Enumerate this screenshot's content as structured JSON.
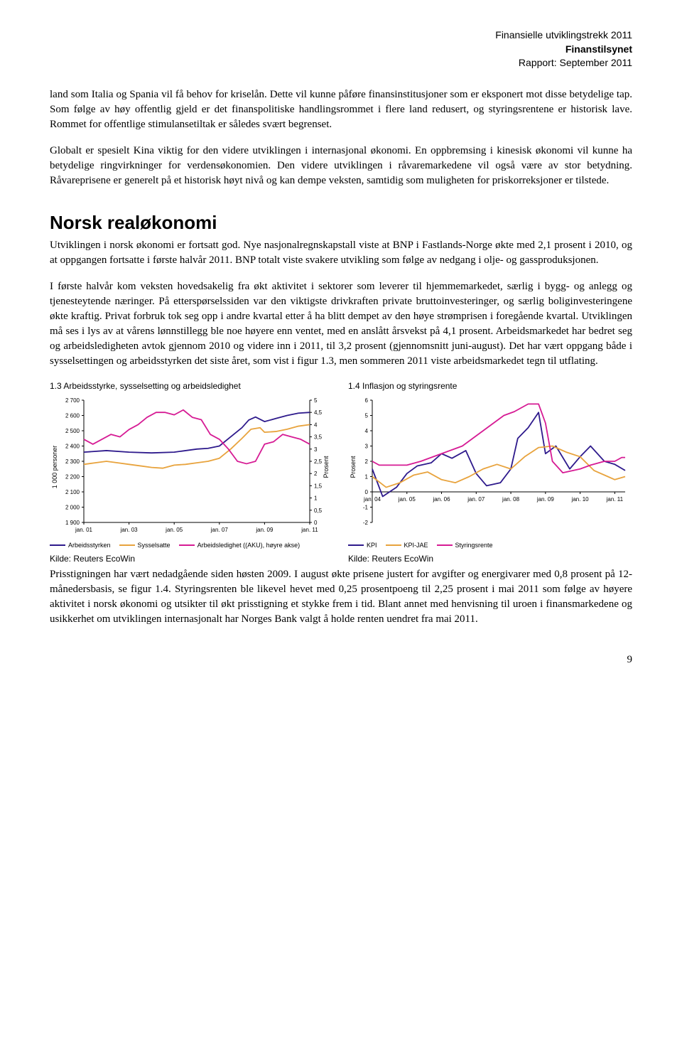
{
  "header": {
    "line1": "Finansielle utviklingstrekk 2011",
    "line2_bold": "Finanstilsynet",
    "line3": "Rapport: September 2011"
  },
  "paragraphs": {
    "p1": "land som Italia og Spania vil få behov for kriselån. Dette vil kunne påføre finansinstitusjoner som er eksponert mot disse betydelige tap. Som følge av høy offentlig gjeld er det finanspolitiske handlingsrommet i flere land redusert, og styringsrentene er historisk lave. Rommet for offentlige stimulansetiltak er således svært begrenset.",
    "p2": "Globalt er spesielt Kina viktig for den videre utviklingen i internasjonal økonomi. En oppbremsing i kinesisk økonomi vil kunne ha betydelige ringvirkninger for verdensøkonomien. Den videre utviklingen i råvaremarkedene vil også være av stor betydning. Råvareprisene er generelt på et historisk høyt nivå og kan dempe veksten, samtidig som muligheten for priskorreksjoner er tilstede.",
    "section_title": "Norsk realøkonomi",
    "p3": "Utviklingen i norsk økonomi er fortsatt god. Nye nasjonalregnskapstall viste at BNP i Fastlands-Norge økte med 2,1 prosent i 2010, og at oppgangen fortsatte i første halvår 2011. BNP totalt viste svakere utvikling som følge av nedgang i olje- og gassproduksjonen.",
    "p4": "I første halvår kom veksten hovedsakelig fra økt aktivitet i sektorer som leverer til hjemmemarkedet, særlig i bygg- og anlegg og tjenesteytende næringer. På etterspørselssiden var den viktigste drivkraften private bruttoinvesteringer, og særlig boliginvesteringene økte kraftig. Privat forbruk tok seg opp i andre kvartal etter å ha blitt dempet av den høye strømprisen i foregående kvartal. Utviklingen må ses i lys av at vårens lønnstillegg ble noe høyere enn ventet, med en anslått årsvekst på 4,1 prosent. Arbeidsmarkedet har bedret seg og arbeidsledigheten avtok gjennom 2010 og videre inn i 2011, til 3,2 prosent (gjennomsnitt juni-august). Det har vært oppgang både i sysselsettingen og arbeidsstyrken det siste året, som vist i figur 1.3, men sommeren 2011 viste arbeidsmarkedet tegn til utflating.",
    "p5": "Prisstigningen har vært nedadgående siden høsten 2009. I august økte prisene justert for avgifter og energivarer med 0,8 prosent på 12-månedersbasis, se figur 1.4. Styringsrenten ble likevel hevet med 0,25 prosentpoeng til 2,25 prosent i mai 2011 som følge av høyere aktivitet i norsk økonomi og utsikter til økt prisstigning et stykke frem i tid. Blant annet med henvisning til uroen i finansmarkedene og usikkerhet om utviklingen internasjonalt har Norges Bank valgt å holde renten uendret fra mai 2011."
  },
  "chart_left": {
    "title": "1.3 Arbeidsstyrke, sysselsetting og arbeidsledighet",
    "y_label_left": "1 000 personer",
    "y_left_min": 1900,
    "y_left_max": 2700,
    "y_left_step": 100,
    "y_right_min": 0,
    "y_right_max": 5,
    "y_right_step": 0.5,
    "x_ticks": [
      "jan. 01",
      "jan. 03",
      "jan. 05",
      "jan. 07",
      "jan. 09",
      "jan. 11"
    ],
    "series": {
      "arbeidsstyrken": {
        "label": "Arbeidsstyrken",
        "color": "#2e1a8c",
        "axis": "left",
        "points": [
          [
            0,
            2360
          ],
          [
            1,
            2370
          ],
          [
            2,
            2360
          ],
          [
            3,
            2355
          ],
          [
            4,
            2360
          ],
          [
            5,
            2380
          ],
          [
            5.5,
            2385
          ],
          [
            6,
            2400
          ],
          [
            6.5,
            2460
          ],
          [
            7,
            2520
          ],
          [
            7.3,
            2570
          ],
          [
            7.6,
            2590
          ],
          [
            8,
            2560
          ],
          [
            8.5,
            2580
          ],
          [
            9,
            2600
          ],
          [
            9.5,
            2615
          ],
          [
            10,
            2620
          ]
        ]
      },
      "sysselsatte": {
        "label": "Sysselsatte",
        "color": "#e8a33d",
        "axis": "left",
        "points": [
          [
            0,
            2280
          ],
          [
            0.5,
            2290
          ],
          [
            1,
            2300
          ],
          [
            1.5,
            2290
          ],
          [
            2,
            2280
          ],
          [
            2.5,
            2270
          ],
          [
            3,
            2260
          ],
          [
            3.5,
            2255
          ],
          [
            4,
            2275
          ],
          [
            4.5,
            2280
          ],
          [
            5,
            2290
          ],
          [
            5.5,
            2300
          ],
          [
            6,
            2320
          ],
          [
            6.5,
            2380
          ],
          [
            7,
            2450
          ],
          [
            7.4,
            2510
          ],
          [
            7.8,
            2520
          ],
          [
            8,
            2490
          ],
          [
            8.5,
            2495
          ],
          [
            9,
            2510
          ],
          [
            9.5,
            2530
          ],
          [
            10,
            2540
          ]
        ]
      },
      "arbeidsledighet": {
        "label": "Arbeidsledighet ((AKU), høyre akse)",
        "color": "#d61b94",
        "axis": "right",
        "points": [
          [
            0,
            3.4
          ],
          [
            0.4,
            3.2
          ],
          [
            0.8,
            3.4
          ],
          [
            1.2,
            3.6
          ],
          [
            1.6,
            3.5
          ],
          [
            2,
            3.8
          ],
          [
            2.4,
            4.0
          ],
          [
            2.8,
            4.3
          ],
          [
            3.2,
            4.5
          ],
          [
            3.6,
            4.5
          ],
          [
            4,
            4.4
          ],
          [
            4.4,
            4.6
          ],
          [
            4.8,
            4.3
          ],
          [
            5.2,
            4.2
          ],
          [
            5.6,
            3.6
          ],
          [
            6,
            3.4
          ],
          [
            6.4,
            3.0
          ],
          [
            6.8,
            2.5
          ],
          [
            7.2,
            2.4
          ],
          [
            7.6,
            2.5
          ],
          [
            8,
            3.2
          ],
          [
            8.4,
            3.3
          ],
          [
            8.8,
            3.6
          ],
          [
            9.2,
            3.5
          ],
          [
            9.6,
            3.4
          ],
          [
            10,
            3.2
          ]
        ]
      }
    },
    "source": "Kilde: Reuters EcoWin"
  },
  "chart_right": {
    "title": "1.4 Inflasjon og styringsrente",
    "y_label": "Prosent",
    "y_min": -2,
    "y_max": 6,
    "y_step": 1,
    "x_ticks": [
      "jan. 04",
      "jan. 05",
      "jan. 06",
      "jan. 07",
      "jan. 08",
      "jan. 09",
      "jan. 10",
      "jan. 11"
    ],
    "series": {
      "kpi": {
        "label": "KPI",
        "color": "#2e1a8c",
        "points": [
          [
            0,
            1.5
          ],
          [
            0.3,
            -0.3
          ],
          [
            0.7,
            0.3
          ],
          [
            1,
            1.2
          ],
          [
            1.3,
            1.7
          ],
          [
            1.7,
            1.9
          ],
          [
            2,
            2.5
          ],
          [
            2.3,
            2.2
          ],
          [
            2.7,
            2.7
          ],
          [
            3,
            1.2
          ],
          [
            3.3,
            0.4
          ],
          [
            3.7,
            0.6
          ],
          [
            4,
            1.5
          ],
          [
            4.2,
            3.5
          ],
          [
            4.5,
            4.2
          ],
          [
            4.8,
            5.2
          ],
          [
            5,
            2.5
          ],
          [
            5.3,
            3.0
          ],
          [
            5.7,
            1.5
          ],
          [
            6,
            2.3
          ],
          [
            6.3,
            3.0
          ],
          [
            6.7,
            2.0
          ],
          [
            7,
            1.8
          ],
          [
            7.3,
            1.4
          ]
        ]
      },
      "kpi_jae": {
        "label": "KPI-JAE",
        "color": "#e8a33d",
        "points": [
          [
            0,
            1.0
          ],
          [
            0.4,
            0.3
          ],
          [
            0.8,
            0.6
          ],
          [
            1.2,
            1.1
          ],
          [
            1.6,
            1.3
          ],
          [
            2,
            0.8
          ],
          [
            2.4,
            0.6
          ],
          [
            2.8,
            1.0
          ],
          [
            3.2,
            1.5
          ],
          [
            3.6,
            1.8
          ],
          [
            4,
            1.5
          ],
          [
            4.4,
            2.3
          ],
          [
            4.8,
            2.9
          ],
          [
            5.2,
            3.0
          ],
          [
            5.6,
            2.6
          ],
          [
            6,
            2.3
          ],
          [
            6.4,
            1.4
          ],
          [
            6.8,
            1.0
          ],
          [
            7.0,
            0.8
          ],
          [
            7.3,
            1.0
          ]
        ]
      },
      "styringsrente": {
        "label": "Styringsrente",
        "color": "#d61b94",
        "points": [
          [
            0,
            2.0
          ],
          [
            0.2,
            1.75
          ],
          [
            0.8,
            1.75
          ],
          [
            1,
            1.75
          ],
          [
            1.4,
            2.0
          ],
          [
            1.7,
            2.25
          ],
          [
            2,
            2.5
          ],
          [
            2.3,
            2.75
          ],
          [
            2.6,
            3.0
          ],
          [
            2.9,
            3.5
          ],
          [
            3.2,
            4.0
          ],
          [
            3.5,
            4.5
          ],
          [
            3.8,
            5.0
          ],
          [
            4.1,
            5.25
          ],
          [
            4.5,
            5.75
          ],
          [
            4.8,
            5.75
          ],
          [
            5,
            4.5
          ],
          [
            5.2,
            2.0
          ],
          [
            5.5,
            1.25
          ],
          [
            6,
            1.5
          ],
          [
            6.3,
            1.75
          ],
          [
            6.7,
            2.0
          ],
          [
            7,
            2.0
          ],
          [
            7.2,
            2.25
          ],
          [
            7.3,
            2.25
          ]
        ]
      }
    },
    "source": "Kilde: Reuters EcoWin"
  },
  "page_number": "9"
}
